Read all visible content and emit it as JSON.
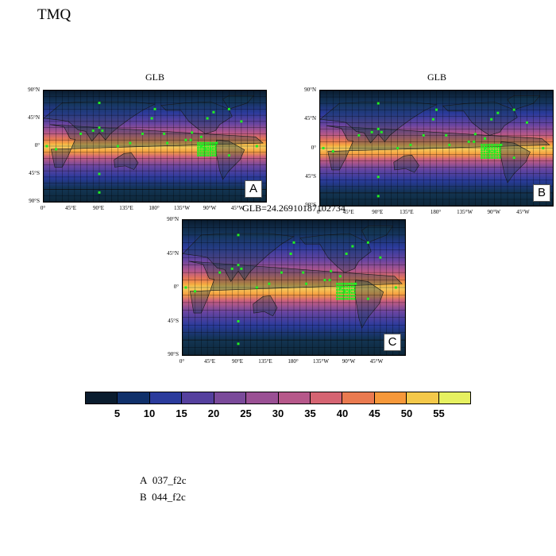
{
  "title": "TMQ",
  "panels": [
    {
      "id": "A",
      "title": "GLB",
      "letter": "A"
    },
    {
      "id": "B",
      "title": "GLB",
      "letter": "B"
    },
    {
      "id": "C",
      "title": "GLB=24.26910187102734",
      "letter": "C"
    }
  ],
  "lat_labels": [
    "90°N",
    "45°N",
    "0°",
    "45°S",
    "90°S"
  ],
  "lon_labels": [
    "0°",
    "45°E",
    "90°E",
    "135°E",
    "180°",
    "135°W",
    "90°W",
    "45°W"
  ],
  "colorbar": {
    "colors": [
      "#0a1c2e",
      "#10306a",
      "#2b3b9c",
      "#55409e",
      "#7a4a9a",
      "#9a5094",
      "#b6588a",
      "#d56472",
      "#ea7a50",
      "#f6983a",
      "#f4c84a",
      "#e6f060"
    ],
    "ticks": [
      "5",
      "10",
      "15",
      "20",
      "25",
      "30",
      "35",
      "40",
      "45",
      "50",
      "55"
    ]
  },
  "legend": [
    {
      "key": "A",
      "value": "037_f2c"
    },
    {
      "key": "B",
      "value": "044_f2c"
    }
  ],
  "marker_color": "#22ee22"
}
